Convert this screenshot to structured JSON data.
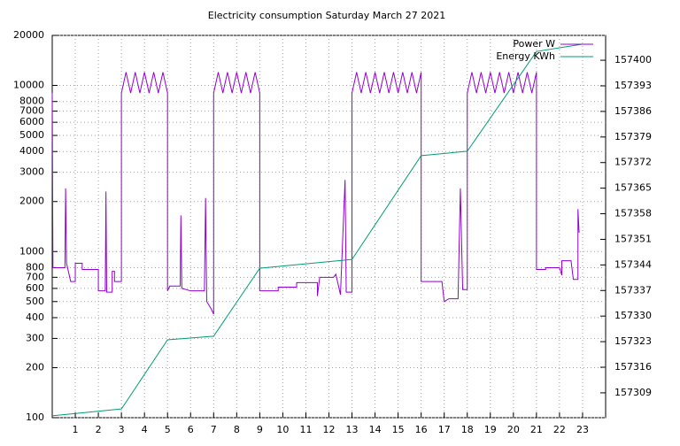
{
  "chart_data": {
    "type": "line",
    "title": "Electricity consumption Saturday March 27 2021",
    "xlim": [
      0,
      24
    ],
    "xticks": [
      1,
      2,
      3,
      4,
      5,
      6,
      7,
      8,
      9,
      10,
      11,
      12,
      13,
      14,
      15,
      16,
      17,
      18,
      19,
      20,
      21,
      22,
      23
    ],
    "ylim": [
      100,
      20000
    ],
    "log_scale_y": true,
    "yticks": [
      100,
      200,
      300,
      400,
      500,
      600,
      700,
      800,
      1000,
      2000,
      3000,
      4000,
      5000,
      6000,
      7000,
      8000,
      10000,
      20000
    ],
    "y2lim": [
      157302.2,
      157406.8
    ],
    "y2ticks": [
      157309,
      157316,
      157323,
      157330,
      157337,
      157344,
      157351,
      157358,
      157365,
      157372,
      157379,
      157386,
      157393,
      157400
    ],
    "grid": true,
    "legend": "top-right",
    "series": [
      {
        "name": "Power W",
        "color": "#9400d3",
        "x": [
          0,
          0.03,
          0.55,
          0.58,
          0.62,
          0.8,
          1.0,
          1.0,
          1.3,
          1.3,
          2.0,
          2.0,
          2.3,
          2.33,
          2.36,
          2.6,
          2.6,
          2.7,
          2.7,
          3.0,
          3.0,
          3.2,
          3.4,
          3.6,
          3.8,
          4.0,
          4.2,
          4.4,
          4.6,
          4.8,
          5.0,
          5.0,
          5.1,
          5.55,
          5.58,
          5.62,
          6.0,
          6.6,
          6.65,
          6.7,
          6.9,
          7.0,
          7.0,
          7.2,
          7.4,
          7.6,
          7.8,
          8.0,
          8.2,
          8.4,
          8.6,
          8.8,
          9.0,
          9.0,
          9.8,
          9.8,
          10.6,
          10.6,
          11.5,
          11.5,
          11.6,
          12.2,
          12.3,
          12.5,
          12.7,
          12.75,
          13.0,
          13.0,
          13.2,
          13.4,
          13.6,
          13.8,
          14.0,
          14.2,
          14.4,
          14.6,
          14.8,
          15.0,
          15.2,
          15.4,
          15.6,
          15.8,
          16.0,
          16.0,
          16.9,
          17.0,
          17.2,
          17.6,
          17.7,
          17.8,
          18.0,
          18.0,
          18.2,
          18.4,
          18.6,
          18.8,
          19.0,
          19.2,
          19.4,
          19.6,
          19.8,
          20.0,
          20.2,
          20.4,
          20.6,
          20.8,
          21.0,
          21.0,
          21.4,
          21.4,
          22.0,
          22.1,
          22.1,
          22.5,
          22.6,
          22.8,
          22.8,
          22.85
        ],
        "values": [
          9000,
          800,
          800,
          2400,
          850,
          660,
          660,
          850,
          850,
          780,
          780,
          580,
          580,
          2300,
          570,
          570,
          760,
          760,
          660,
          660,
          9000,
          12000,
          9000,
          12000,
          9000,
          12000,
          9000,
          12000,
          9000,
          12000,
          9000,
          580,
          620,
          620,
          1650,
          600,
          580,
          580,
          2100,
          500,
          450,
          420,
          9000,
          12000,
          9000,
          12000,
          9000,
          12000,
          9000,
          12000,
          9000,
          12000,
          9000,
          580,
          580,
          610,
          610,
          650,
          650,
          540,
          700,
          700,
          730,
          550,
          2700,
          570,
          570,
          9000,
          12000,
          9000,
          12000,
          9000,
          12000,
          9000,
          12000,
          9000,
          12000,
          9000,
          12000,
          9000,
          12000,
          9000,
          12000,
          660,
          660,
          500,
          520,
          520,
          2400,
          590,
          590,
          9000,
          12000,
          9000,
          12000,
          9000,
          12000,
          9000,
          12000,
          9000,
          12000,
          9000,
          12000,
          9000,
          12000,
          9000,
          12000,
          780,
          780,
          800,
          800,
          720,
          880,
          880,
          680,
          680,
          1800,
          1300
        ]
      },
      {
        "name": "Energy KWh",
        "color": "#009e73",
        "axis": "y2",
        "x": [
          0,
          3,
          5,
          7,
          9,
          13,
          16,
          18,
          21,
          23
        ],
        "values": [
          157302.7,
          157304.6,
          157323.5,
          157324.5,
          157343.1,
          157345.5,
          157373.9,
          157375.1,
          157402.4,
          157404.4
        ]
      }
    ]
  }
}
